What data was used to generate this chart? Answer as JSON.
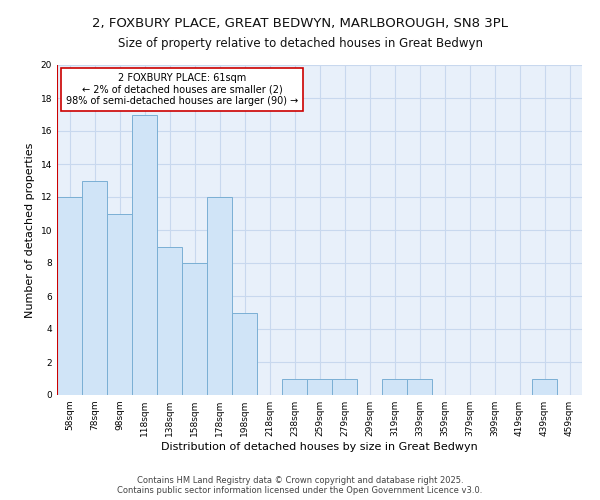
{
  "title1": "2, FOXBURY PLACE, GREAT BEDWYN, MARLBOROUGH, SN8 3PL",
  "title2": "Size of property relative to detached houses in Great Bedwyn",
  "xlabel": "Distribution of detached houses by size in Great Bedwyn",
  "ylabel": "Number of detached properties",
  "bins": [
    "58sqm",
    "78sqm",
    "98sqm",
    "118sqm",
    "138sqm",
    "158sqm",
    "178sqm",
    "198sqm",
    "218sqm",
    "238sqm",
    "259sqm",
    "279sqm",
    "299sqm",
    "319sqm",
    "339sqm",
    "359sqm",
    "379sqm",
    "399sqm",
    "419sqm",
    "439sqm",
    "459sqm"
  ],
  "values": [
    12,
    13,
    11,
    17,
    9,
    8,
    12,
    5,
    0,
    1,
    1,
    1,
    0,
    1,
    1,
    0,
    0,
    0,
    0,
    1,
    0
  ],
  "bar_color": "#d0e4f7",
  "bar_edge_color": "#7aafd4",
  "annotation_box_color": "#ffffff",
  "annotation_box_edge": "#cc0000",
  "annotation_text": "2 FOXBURY PLACE: 61sqm\n← 2% of detached houses are smaller (2)\n98% of semi-detached houses are larger (90) →",
  "vline_color": "#cc0000",
  "ylim": [
    0,
    20
  ],
  "yticks": [
    0,
    2,
    4,
    6,
    8,
    10,
    12,
    14,
    16,
    18,
    20
  ],
  "footer": "Contains HM Land Registry data © Crown copyright and database right 2025.\nContains public sector information licensed under the Open Government Licence v3.0.",
  "title_fontsize": 9.5,
  "subtitle_fontsize": 8.5,
  "axis_label_fontsize": 8,
  "tick_fontsize": 6.5,
  "annotation_fontsize": 7,
  "footer_fontsize": 6,
  "grid_color": "#c8d8ee",
  "background_color": "#e8f0fa"
}
